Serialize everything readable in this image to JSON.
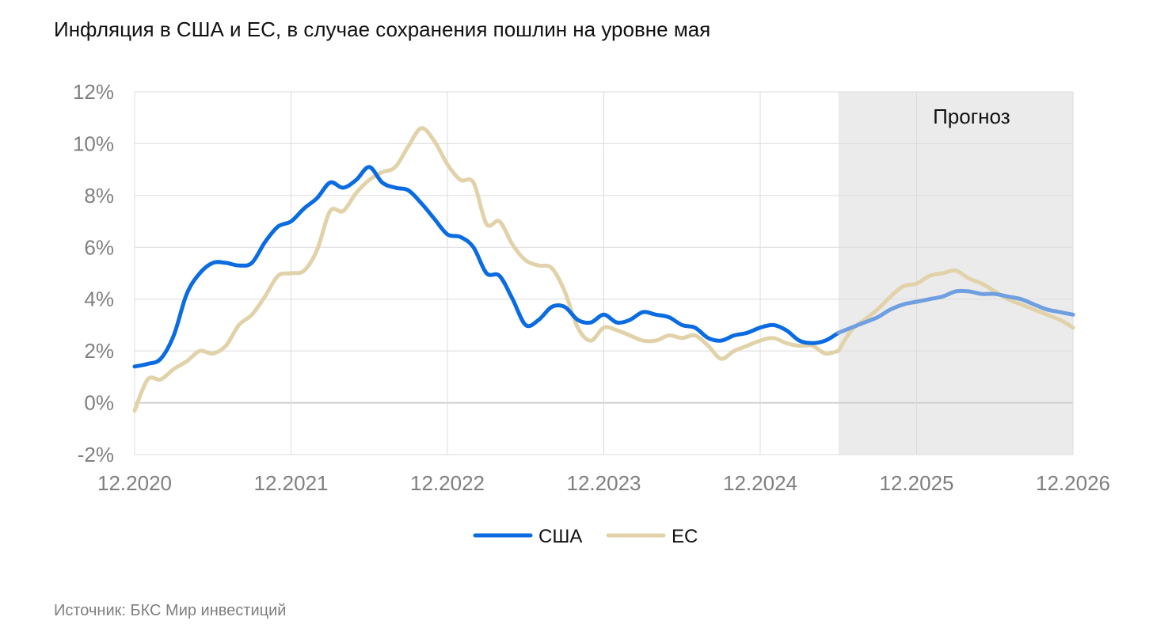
{
  "chart_data": {
    "type": "line",
    "title": "Инфляция в США и ЕС, в случае сохранения пошлин на уровне мая",
    "xlabel": "",
    "ylabel": "",
    "x_ticks": [
      "12.2020",
      "12.2021",
      "12.2022",
      "12.2023",
      "12.2024",
      "12.2025",
      "12.2026"
    ],
    "y_ticks": [
      "-2%",
      "0%",
      "2%",
      "4%",
      "6%",
      "8%",
      "10%",
      "12%"
    ],
    "ylim": [
      -2,
      12
    ],
    "xlim": [
      "2020-12",
      "2026-12"
    ],
    "grid": true,
    "legend_position": "bottom",
    "forecast": {
      "label": "Прогноз",
      "start": "2025-06",
      "forecast_color": "#6f9fe0"
    },
    "series": [
      {
        "name": "США",
        "color": "#0a6ce0",
        "points": [
          [
            "2020-12",
            1.4
          ],
          [
            "2021-01",
            1.5
          ],
          [
            "2021-02",
            1.7
          ],
          [
            "2021-03",
            2.6
          ],
          [
            "2021-04",
            4.2
          ],
          [
            "2021-05",
            5.0
          ],
          [
            "2021-06",
            5.4
          ],
          [
            "2021-07",
            5.4
          ],
          [
            "2021-08",
            5.3
          ],
          [
            "2021-09",
            5.4
          ],
          [
            "2021-10",
            6.2
          ],
          [
            "2021-11",
            6.8
          ],
          [
            "2021-12",
            7.0
          ],
          [
            "2022-01",
            7.5
          ],
          [
            "2022-02",
            7.9
          ],
          [
            "2022-03",
            8.5
          ],
          [
            "2022-04",
            8.3
          ],
          [
            "2022-05",
            8.6
          ],
          [
            "2022-06",
            9.1
          ],
          [
            "2022-07",
            8.5
          ],
          [
            "2022-08",
            8.3
          ],
          [
            "2022-09",
            8.2
          ],
          [
            "2022-10",
            7.7
          ],
          [
            "2022-11",
            7.1
          ],
          [
            "2022-12",
            6.5
          ],
          [
            "2023-01",
            6.4
          ],
          [
            "2023-02",
            6.0
          ],
          [
            "2023-03",
            5.0
          ],
          [
            "2023-04",
            4.9
          ],
          [
            "2023-05",
            4.0
          ],
          [
            "2023-06",
            3.0
          ],
          [
            "2023-07",
            3.2
          ],
          [
            "2023-08",
            3.7
          ],
          [
            "2023-09",
            3.7
          ],
          [
            "2023-10",
            3.2
          ],
          [
            "2023-11",
            3.1
          ],
          [
            "2023-12",
            3.4
          ],
          [
            "2024-01",
            3.1
          ],
          [
            "2024-02",
            3.2
          ],
          [
            "2024-03",
            3.5
          ],
          [
            "2024-04",
            3.4
          ],
          [
            "2024-05",
            3.3
          ],
          [
            "2024-06",
            3.0
          ],
          [
            "2024-07",
            2.9
          ],
          [
            "2024-08",
            2.5
          ],
          [
            "2024-09",
            2.4
          ],
          [
            "2024-10",
            2.6
          ],
          [
            "2024-11",
            2.7
          ],
          [
            "2024-12",
            2.9
          ],
          [
            "2025-01",
            3.0
          ],
          [
            "2025-02",
            2.8
          ],
          [
            "2025-03",
            2.4
          ],
          [
            "2025-04",
            2.3
          ],
          [
            "2025-05",
            2.4
          ],
          [
            "2025-06",
            2.7
          ],
          [
            "2025-07",
            2.9
          ],
          [
            "2025-08",
            3.1
          ],
          [
            "2025-09",
            3.3
          ],
          [
            "2025-10",
            3.6
          ],
          [
            "2025-11",
            3.8
          ],
          [
            "2025-12",
            3.9
          ],
          [
            "2026-01",
            4.0
          ],
          [
            "2026-02",
            4.1
          ],
          [
            "2026-03",
            4.3
          ],
          [
            "2026-04",
            4.3
          ],
          [
            "2026-05",
            4.2
          ],
          [
            "2026-06",
            4.2
          ],
          [
            "2026-07",
            4.1
          ],
          [
            "2026-08",
            4.0
          ],
          [
            "2026-09",
            3.8
          ],
          [
            "2026-10",
            3.6
          ],
          [
            "2026-11",
            3.5
          ],
          [
            "2026-12",
            3.4
          ]
        ]
      },
      {
        "name": "ЕС",
        "color": "#e1d2a9",
        "points": [
          [
            "2020-12",
            -0.3
          ],
          [
            "2021-01",
            0.9
          ],
          [
            "2021-02",
            0.9
          ],
          [
            "2021-03",
            1.3
          ],
          [
            "2021-04",
            1.6
          ],
          [
            "2021-05",
            2.0
          ],
          [
            "2021-06",
            1.9
          ],
          [
            "2021-07",
            2.2
          ],
          [
            "2021-08",
            3.0
          ],
          [
            "2021-09",
            3.4
          ],
          [
            "2021-10",
            4.1
          ],
          [
            "2021-11",
            4.9
          ],
          [
            "2021-12",
            5.0
          ],
          [
            "2022-01",
            5.1
          ],
          [
            "2022-02",
            5.9
          ],
          [
            "2022-03",
            7.4
          ],
          [
            "2022-04",
            7.4
          ],
          [
            "2022-05",
            8.1
          ],
          [
            "2022-06",
            8.6
          ],
          [
            "2022-07",
            8.9
          ],
          [
            "2022-08",
            9.1
          ],
          [
            "2022-09",
            9.9
          ],
          [
            "2022-10",
            10.6
          ],
          [
            "2022-11",
            10.1
          ],
          [
            "2022-12",
            9.2
          ],
          [
            "2023-01",
            8.6
          ],
          [
            "2023-02",
            8.5
          ],
          [
            "2023-03",
            6.9
          ],
          [
            "2023-04",
            7.0
          ],
          [
            "2023-05",
            6.1
          ],
          [
            "2023-06",
            5.5
          ],
          [
            "2023-07",
            5.3
          ],
          [
            "2023-08",
            5.2
          ],
          [
            "2023-09",
            4.3
          ],
          [
            "2023-10",
            2.9
          ],
          [
            "2023-11",
            2.4
          ],
          [
            "2023-12",
            2.9
          ],
          [
            "2024-01",
            2.8
          ],
          [
            "2024-02",
            2.6
          ],
          [
            "2024-03",
            2.4
          ],
          [
            "2024-04",
            2.4
          ],
          [
            "2024-05",
            2.6
          ],
          [
            "2024-06",
            2.5
          ],
          [
            "2024-07",
            2.6
          ],
          [
            "2024-08",
            2.2
          ],
          [
            "2024-09",
            1.7
          ],
          [
            "2024-10",
            2.0
          ],
          [
            "2024-11",
            2.2
          ],
          [
            "2024-12",
            2.4
          ],
          [
            "2025-01",
            2.5
          ],
          [
            "2025-02",
            2.3
          ],
          [
            "2025-03",
            2.2
          ],
          [
            "2025-04",
            2.2
          ],
          [
            "2025-05",
            1.9
          ],
          [
            "2025-06",
            2.0
          ],
          [
            "2025-07",
            2.8
          ],
          [
            "2025-08",
            3.2
          ],
          [
            "2025-09",
            3.6
          ],
          [
            "2025-10",
            4.1
          ],
          [
            "2025-11",
            4.5
          ],
          [
            "2025-12",
            4.6
          ],
          [
            "2026-01",
            4.9
          ],
          [
            "2026-02",
            5.0
          ],
          [
            "2026-03",
            5.1
          ],
          [
            "2026-04",
            4.8
          ],
          [
            "2026-05",
            4.6
          ],
          [
            "2026-06",
            4.3
          ],
          [
            "2026-07",
            4.0
          ],
          [
            "2026-08",
            3.8
          ],
          [
            "2026-09",
            3.6
          ],
          [
            "2026-10",
            3.4
          ],
          [
            "2026-11",
            3.2
          ],
          [
            "2026-12",
            2.9
          ]
        ]
      }
    ]
  },
  "source_text": "Источник: БКС Мир инвестиций"
}
